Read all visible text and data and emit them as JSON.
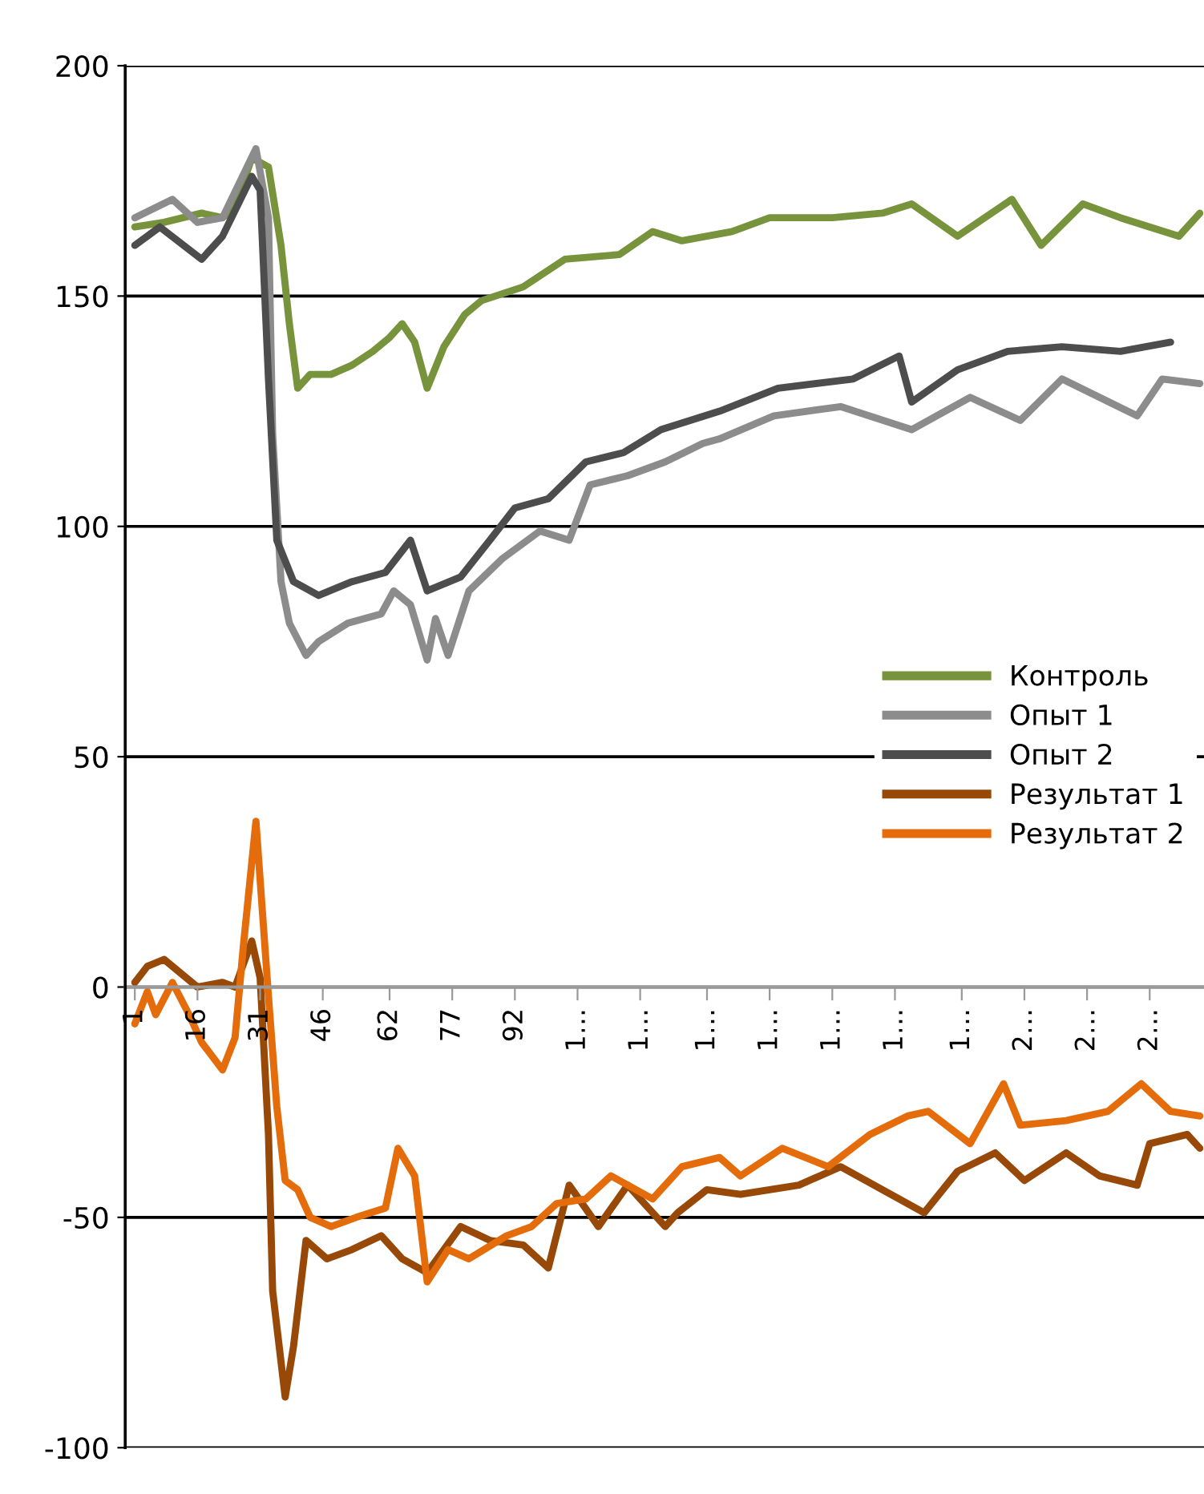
{
  "chart_data": {
    "type": "line",
    "xlim": [
      -1.3,
      257
    ],
    "ylim": [
      -100,
      200
    ],
    "yticks": [
      -100,
      -50,
      0,
      50,
      100,
      150,
      200
    ],
    "xticks": [
      1,
      16,
      31,
      46,
      62,
      77,
      92,
      {
        "value": 107,
        "label": "1…"
      },
      {
        "value": 122,
        "label": "1…"
      },
      {
        "value": 138,
        "label": "1…"
      },
      {
        "value": 153,
        "label": "1…"
      },
      {
        "value": 168,
        "label": "1…"
      },
      {
        "value": 183,
        "label": "1…"
      },
      {
        "value": 199,
        "label": "1…"
      },
      {
        "value": 214,
        "label": "2…"
      },
      {
        "value": 229,
        "label": "2…"
      },
      {
        "value": 244,
        "label": "2…"
      }
    ],
    "grid": "y",
    "legend": "right",
    "marker": "none",
    "line_style": "solid",
    "series": [
      {
        "name": "Контроль",
        "color": "#77933c",
        "x": [
          1,
          8,
          17,
          22,
          25,
          29,
          33,
          36,
          38,
          40,
          43,
          48,
          53,
          58,
          62,
          65,
          68,
          71,
          75,
          80,
          84,
          94,
          104,
          117,
          125,
          132,
          144,
          153,
          168,
          180,
          187,
          198,
          211,
          218,
          228,
          237,
          251,
          256
        ],
        "values": [
          165,
          166,
          168,
          167,
          169,
          180,
          178,
          161,
          144,
          130,
          133,
          133,
          135,
          138,
          141,
          144,
          140,
          130,
          139,
          146,
          149,
          152,
          158,
          159,
          164,
          162,
          164,
          167,
          167,
          168,
          170,
          163,
          171,
          161,
          170,
          167,
          163,
          168
        ]
      },
      {
        "name": "Опыт 1",
        "color": "#8c8c8c",
        "x": [
          1,
          10,
          16,
          22,
          30,
          33,
          34,
          36,
          38,
          42,
          45,
          52,
          60,
          63,
          67,
          71,
          73,
          76,
          81,
          89,
          98,
          105,
          110,
          119,
          128,
          137,
          141,
          154,
          170,
          187,
          201,
          213,
          223,
          241,
          247,
          256
        ],
        "values": [
          167,
          171,
          166,
          167,
          182,
          167,
          120,
          88,
          79,
          72,
          75,
          79,
          81,
          86,
          83,
          71,
          80,
          72,
          86,
          93,
          99,
          97,
          109,
          111,
          114,
          118,
          119,
          124,
          126,
          121,
          128,
          123,
          132,
          124,
          132,
          131
        ]
      },
      {
        "name": "Опыт 2",
        "color": "#4d4d4d",
        "x": [
          1,
          7,
          17,
          22,
          29,
          31,
          33,
          35,
          39,
          45,
          53,
          61,
          67,
          71,
          79,
          86,
          92,
          100,
          109,
          118,
          127,
          141,
          155,
          173,
          184,
          187,
          198,
          210,
          223,
          237,
          249
        ],
        "values": [
          161,
          165,
          158,
          163,
          176,
          173,
          132,
          97,
          88,
          85,
          88,
          90,
          97,
          86,
          89,
          97,
          104,
          106,
          114,
          116,
          121,
          125,
          130,
          132,
          137,
          127,
          134,
          138,
          139,
          138,
          140
        ]
      },
      {
        "name": "Результат 1",
        "color": "#984807",
        "x": [
          1,
          4,
          8,
          12,
          16,
          22,
          25,
          29,
          31,
          33,
          34,
          37,
          39,
          42,
          47,
          53,
          60,
          65,
          71,
          79,
          86,
          94,
          100,
          105,
          112,
          119,
          128,
          131,
          138,
          146,
          160,
          170,
          190,
          198,
          207,
          214,
          224,
          232,
          241,
          244,
          253,
          256
        ],
        "values": [
          1,
          4.5,
          6,
          3,
          0,
          1,
          0,
          10,
          2,
          -32,
          -66,
          -89,
          -78,
          -55,
          -59,
          -57,
          -54,
          -59,
          -62,
          -52,
          -55,
          -56,
          -61,
          -43,
          -52,
          -43,
          -52,
          -49,
          -44,
          -45,
          -43,
          -39,
          -49,
          -40,
          -36,
          -42,
          -36,
          -41,
          -43,
          -34,
          -32,
          -35
        ]
      },
      {
        "name": "Результат 2",
        "color": "#e46c0a",
        "x": [
          1,
          4,
          6,
          10,
          14,
          17,
          22,
          25,
          27,
          30,
          33,
          35,
          37,
          40,
          43,
          48,
          54,
          61,
          64,
          68,
          71,
          76,
          81,
          90,
          96,
          102,
          109,
          115,
          125,
          132,
          141,
          146,
          156,
          167,
          177,
          186,
          191,
          201,
          209,
          213,
          224,
          234,
          242,
          249,
          256
        ],
        "values": [
          -8,
          -1,
          -6,
          1,
          -6,
          -12,
          -18,
          -11,
          9,
          36,
          -2,
          -26,
          -42,
          -44,
          -50,
          -52,
          -50,
          -48,
          -35,
          -41,
          -64,
          -57,
          -59,
          -54,
          -52,
          -47,
          -46,
          -41,
          -46,
          -39,
          -37,
          -41,
          -35,
          -39,
          -32,
          -28,
          -27,
          -34,
          -21,
          -30,
          -29,
          -27,
          -21,
          -27,
          -28
        ]
      }
    ]
  }
}
